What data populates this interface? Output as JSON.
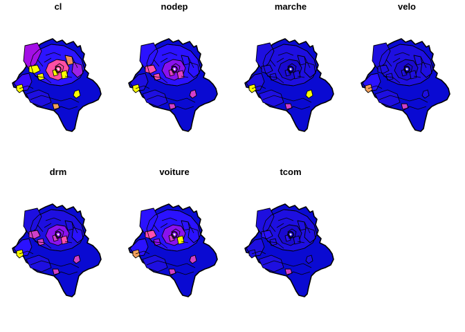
{
  "figure": {
    "panels": [
      {
        "title": "cl",
        "base": "#0a0ad2",
        "ring": "#2c14ff",
        "west": "#3b0bff",
        "southwest": "#1e0fe0",
        "features": {
          "nw": "#a30fe6",
          "core": "#ff4fa4",
          "east": "#9d22e6",
          "ne": "#f28c5a",
          "w1": "#ffff00",
          "w2": "#ffff00",
          "c1": "#ffff00",
          "c2": "#ffff00",
          "e1": "#ffff00",
          "s1": "#f2a05c",
          "wspot": "#ffff00"
        }
      },
      {
        "title": "nodep",
        "base": "#0a0ad2",
        "ring": "#2b12ff",
        "west": "#1e0fe0",
        "southwest": "#1e0fe0",
        "features": {
          "nw": "#2b12ff",
          "core": "#8a12ee",
          "east": "#2b12ff",
          "ne": "#2b12ff",
          "w1": "#ff4fb0",
          "w2": "#ff4fb0",
          "c1": "#e040c8",
          "c2": "#e040c8",
          "e1": "#d43fcb",
          "s1": "#d040c8",
          "wspot": "#ffff00"
        }
      },
      {
        "title": "marche",
        "base": "#0a0ad2",
        "ring": "#1e0fe0",
        "west": "#1e0fe0",
        "southwest": "#1e0fe0",
        "features": {
          "nw": "#1e0fe0",
          "core": "#1a0acf",
          "east": "#1e0fe0",
          "ne": "#1e0fe0",
          "w1": "#1e0fe0",
          "w2": "#1e0fe0",
          "c1": "#1e0fe0",
          "c2": "#1e0fe0",
          "e1": "#ffff00",
          "s1": "#d040c8",
          "wspot": "#ffff00"
        }
      },
      {
        "title": "velo",
        "base": "#0a0ad2",
        "ring": "#1e0fe0",
        "west": "#2b12ff",
        "southwest": "#1e0fe0",
        "features": {
          "nw": "#1e0fe0",
          "core": "#1a0acf",
          "east": "#1e0fe0",
          "ne": "#1e0fe0",
          "w1": "#1e0fe0",
          "w2": "#1e0fe0",
          "c1": "#1e0fe0",
          "c2": "#1e0fe0",
          "e1": "#1e0fe0",
          "s1": "#d040c8",
          "wspot": "#f2a05c"
        }
      },
      {
        "title": "drm",
        "base": "#0a0ad2",
        "ring": "#1e0fe0",
        "west": "#2b12ff",
        "southwest": "#1e0fe0",
        "features": {
          "nw": "#1e0fe0",
          "core": "#8a12ee",
          "east": "#2b12ff",
          "ne": "#1e0fe0",
          "w1": "#d040c8",
          "w2": "#d040c8",
          "c1": "#ff4fb0",
          "c2": "#d040c8",
          "e1": "#d040c8",
          "s1": "#d040c8",
          "wspot": "#ffff00"
        }
      },
      {
        "title": "voiture",
        "base": "#0a0ad2",
        "ring": "#2b12ff",
        "west": "#2b12ff",
        "southwest": "#1e0fe0",
        "features": {
          "nw": "#2b12ff",
          "core": "#8a12ee",
          "east": "#2b12ff",
          "ne": "#2b12ff",
          "w1": "#ff4fb0",
          "w2": "#8a12ee",
          "c1": "#ffff00",
          "c2": "#d040c8",
          "e1": "#d040c8",
          "s1": "#d040c8",
          "wspot": "#f2a05c"
        }
      },
      {
        "title": "tcom",
        "base": "#0a0ad2",
        "ring": "#1e0fe0",
        "west": "#1e0fe0",
        "southwest": "#1e0fe0",
        "features": {
          "nw": "#1e0fe0",
          "core": "#1a0acf",
          "east": "#1e0fe0",
          "ne": "#1e0fe0",
          "w1": "#2b12ff",
          "w2": "#1e0fe0",
          "c1": "#1e0fe0",
          "c2": "#2b12ff",
          "e1": "#1e0fe0",
          "s1": "#d040c8",
          "wspot": "#1e0fe0"
        }
      }
    ]
  }
}
